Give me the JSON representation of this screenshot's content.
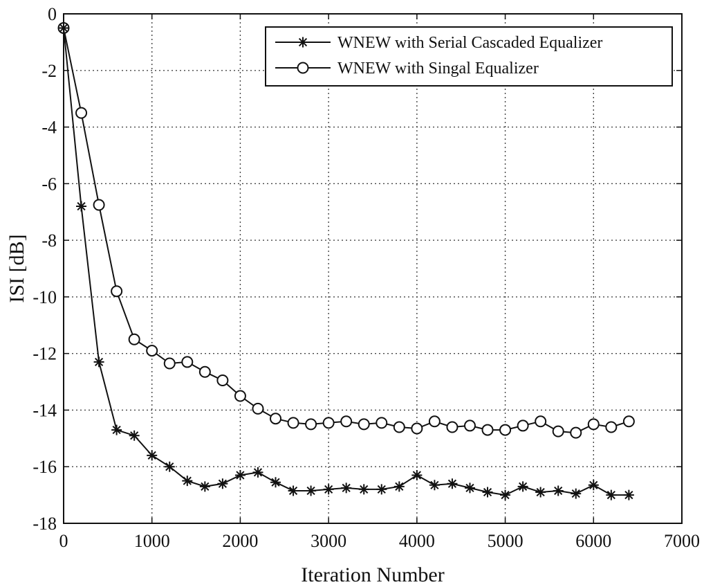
{
  "chart_data": {
    "type": "line",
    "title": "",
    "xlabel": "Iteration Number",
    "ylabel": "ISI [dB]",
    "xlim": [
      0,
      7000
    ],
    "ylim": [
      -18,
      0
    ],
    "xticks": [
      0,
      1000,
      2000,
      3000,
      4000,
      5000,
      6000,
      7000
    ],
    "yticks": [
      0,
      -2,
      -4,
      -6,
      -8,
      -10,
      -12,
      -14,
      -16,
      -18
    ],
    "grid": true,
    "legend_position": "top-right",
    "colors": {
      "line": "#111111",
      "grid": "#444444",
      "background": "#ffffff"
    },
    "x": [
      0,
      200,
      400,
      600,
      800,
      1000,
      1200,
      1400,
      1600,
      1800,
      2000,
      2200,
      2400,
      2600,
      2800,
      3000,
      3200,
      3400,
      3600,
      3800,
      4000,
      4200,
      4400,
      4600,
      4800,
      5000,
      5200,
      5400,
      5600,
      5800,
      6000,
      6200,
      6400
    ],
    "series": [
      {
        "name": "WNEW with Serial Cascaded Equalizer",
        "marker": "asterisk",
        "values": [
          -0.5,
          -6.8,
          -12.3,
          -14.7,
          -14.9,
          -15.6,
          -16.0,
          -16.5,
          -16.7,
          -16.6,
          -16.3,
          -16.2,
          -16.55,
          -16.85,
          -16.85,
          -16.8,
          -16.75,
          -16.8,
          -16.8,
          -16.7,
          -16.3,
          -16.65,
          -16.6,
          -16.75,
          -16.9,
          -17.0,
          -16.7,
          -16.9,
          -16.85,
          -16.95,
          -16.65,
          -17.0,
          -17.0
        ]
      },
      {
        "name": "WNEW with Singal Equalizer",
        "marker": "circle",
        "values": [
          -0.5,
          -3.5,
          -6.75,
          -9.8,
          -11.5,
          -11.9,
          -12.35,
          -12.3,
          -12.65,
          -12.95,
          -13.5,
          -13.95,
          -14.3,
          -14.45,
          -14.5,
          -14.45,
          -14.4,
          -14.5,
          -14.45,
          -14.6,
          -14.65,
          -14.4,
          -14.6,
          -14.55,
          -14.7,
          -14.7,
          -14.55,
          -14.4,
          -14.75,
          -14.8,
          -14.5,
          -14.6,
          -14.4
        ]
      }
    ]
  }
}
